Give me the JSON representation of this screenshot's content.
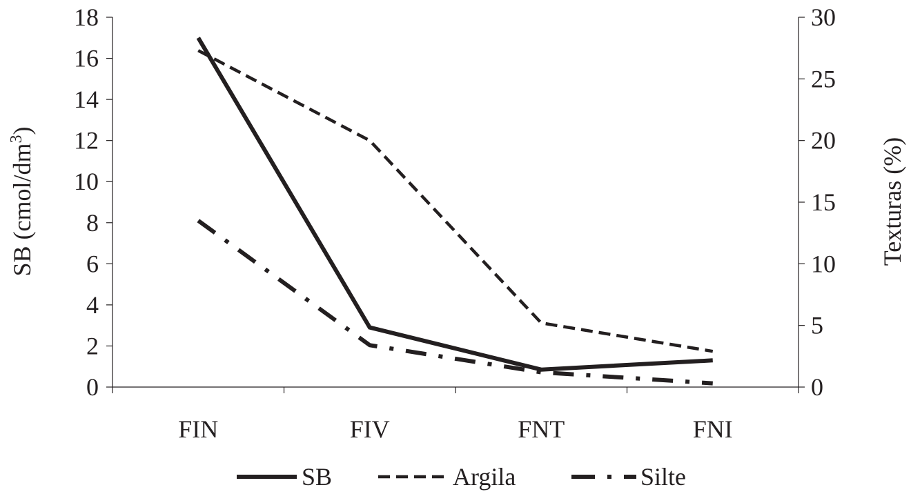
{
  "chart_data": {
    "type": "line",
    "categories": [
      "FIN",
      "FIV",
      "FNT",
      "FNI"
    ],
    "y_left": {
      "label_main": "SB (cmol/dm",
      "label_sup": "3",
      "label_close": ")",
      "range": [
        0,
        18
      ],
      "ticks": [
        "0",
        "2",
        "4",
        "6",
        "8",
        "10",
        "12",
        "14",
        "16",
        "18"
      ]
    },
    "y_right": {
      "label": "Texturas (%)",
      "range": [
        0,
        30
      ],
      "ticks": [
        "0",
        "5",
        "10",
        "15",
        "20",
        "25",
        "30"
      ]
    },
    "series": [
      {
        "name": "SB",
        "axis": "left",
        "style": "solid",
        "values": [
          17.0,
          2.9,
          0.85,
          1.3
        ]
      },
      {
        "name": "Argila",
        "axis": "right",
        "style": "dashed",
        "values": [
          27.3,
          20.0,
          5.2,
          2.9
        ]
      },
      {
        "name": "Silte",
        "axis": "right",
        "style": "dashdot",
        "values": [
          13.5,
          3.4,
          1.2,
          0.3
        ]
      }
    ],
    "legend_position": "bottom",
    "grid": false,
    "line_color": "#231f20"
  }
}
